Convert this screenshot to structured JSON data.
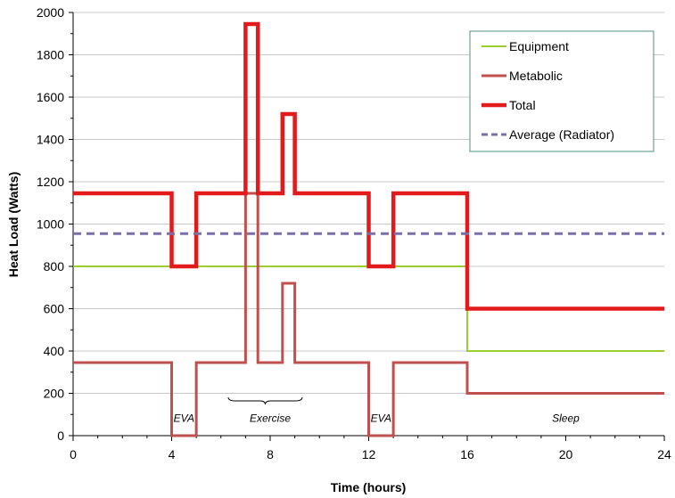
{
  "chart_data": {
    "type": "line",
    "title": "",
    "xlabel": "Time (hours)",
    "ylabel": "Heat Load (Watts)",
    "xlim": [
      0,
      24
    ],
    "ylim": [
      0,
      2000
    ],
    "xticks": [
      0,
      4,
      8,
      12,
      16,
      20,
      24
    ],
    "xtick_labels": [
      "0",
      "4",
      "8",
      "12",
      "16",
      "20",
      "24"
    ],
    "yticks": [
      0,
      200,
      400,
      600,
      800,
      1000,
      1200,
      1400,
      1600,
      1800,
      2000
    ],
    "ytick_labels": [
      "0",
      "200",
      "400",
      "600",
      "800",
      "1000",
      "1200",
      "1400",
      "1600",
      "1800",
      "2000"
    ],
    "grid": "horizontal",
    "legend_position": "top-right",
    "series": [
      {
        "name": "Equipment",
        "color": "#9ACD32",
        "style": "solid-thin",
        "x": [
          0,
          16,
          16,
          24
        ],
        "y": [
          800,
          800,
          400,
          400
        ]
      },
      {
        "name": "Metabolic",
        "color": "#C0504D",
        "style": "solid",
        "x": [
          0,
          4,
          4,
          5,
          5,
          7,
          7,
          7.5,
          7.5,
          8.5,
          8.5,
          9,
          9,
          12,
          12,
          13,
          13,
          16,
          16,
          24
        ],
        "y": [
          345,
          345,
          0,
          0,
          345,
          345,
          1145,
          1145,
          345,
          345,
          720,
          720,
          345,
          345,
          0,
          0,
          345,
          345,
          200,
          200
        ]
      },
      {
        "name": "Total",
        "color": "#E31A1C",
        "style": "solid-thick",
        "x": [
          0,
          4,
          4,
          5,
          5,
          7,
          7,
          7.5,
          7.5,
          8.5,
          8.5,
          9,
          9,
          12,
          12,
          13,
          13,
          16,
          16,
          24
        ],
        "y": [
          1145,
          1145,
          800,
          800,
          1145,
          1145,
          1945,
          1945,
          1145,
          1145,
          1520,
          1520,
          1145,
          1145,
          800,
          800,
          1145,
          1145,
          600,
          600
        ]
      },
      {
        "name": "Average (Radiator)",
        "color": "#7B6FA8",
        "style": "dashed",
        "x": [
          0,
          24
        ],
        "y": [
          955,
          955
        ]
      }
    ],
    "annotations": [
      {
        "text": "EVA",
        "x": 4.5,
        "y": 65
      },
      {
        "text": "Exercise",
        "x": 8,
        "y": 65
      },
      {
        "text": "EVA",
        "x": 12.5,
        "y": 65
      },
      {
        "text": "Sleep",
        "x": 20,
        "y": 65
      }
    ],
    "brace": {
      "x_start": 6.3,
      "x_end": 9.3
    }
  }
}
